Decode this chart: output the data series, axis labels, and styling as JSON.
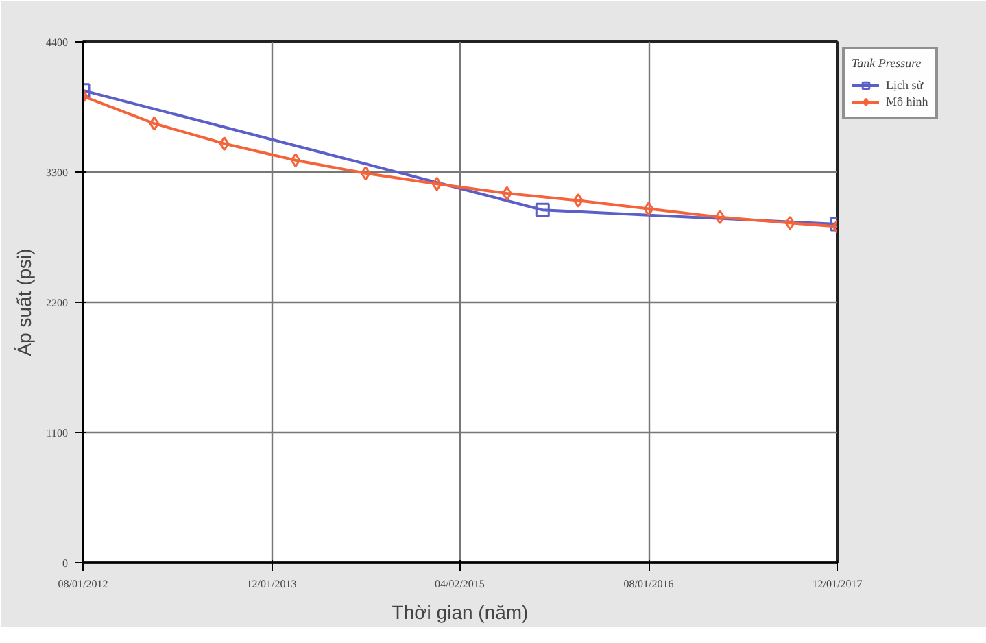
{
  "chart_data": {
    "type": "line",
    "xlabel": "Thời gian (năm)",
    "ylabel": "Áp suất (psi)",
    "legend_title": "Tank Pressure",
    "legend": "right",
    "grid": true,
    "xlim": [
      "2012-08-01",
      "2017-12-01"
    ],
    "xticks": [
      {
        "value": "2012-08-01",
        "label": "08/01/2012"
      },
      {
        "value": "2013-12-01",
        "label": "12/01/2013"
      },
      {
        "value": "2015-04-01",
        "label": "04/02/2015"
      },
      {
        "value": "2016-08-01",
        "label": "08/01/2016"
      },
      {
        "value": "2017-12-01",
        "label": "12/01/2017"
      }
    ],
    "ylim": [
      0,
      4400
    ],
    "yticks": [
      0,
      1100,
      2200,
      3300,
      4400
    ],
    "series": [
      {
        "name": "Lịch sử",
        "color": "#5b5fc7",
        "marker": "square",
        "x": [
          "2012-08-01",
          "2015-11-01",
          "2017-12-01"
        ],
        "values": [
          3990,
          2980,
          2860
        ]
      },
      {
        "name": "Mô hình",
        "color": "#f4633a",
        "marker": "diamond",
        "x": [
          "2012-08-01",
          "2013-02-01",
          "2013-08-01",
          "2014-02-01",
          "2014-08-01",
          "2015-02-01",
          "2015-08-01",
          "2016-02-01",
          "2016-08-01",
          "2017-02-01",
          "2017-08-01",
          "2017-12-01"
        ],
        "values": [
          3940,
          3710,
          3540,
          3400,
          3290,
          3200,
          3120,
          3060,
          2990,
          2920,
          2870,
          2840
        ]
      }
    ]
  }
}
